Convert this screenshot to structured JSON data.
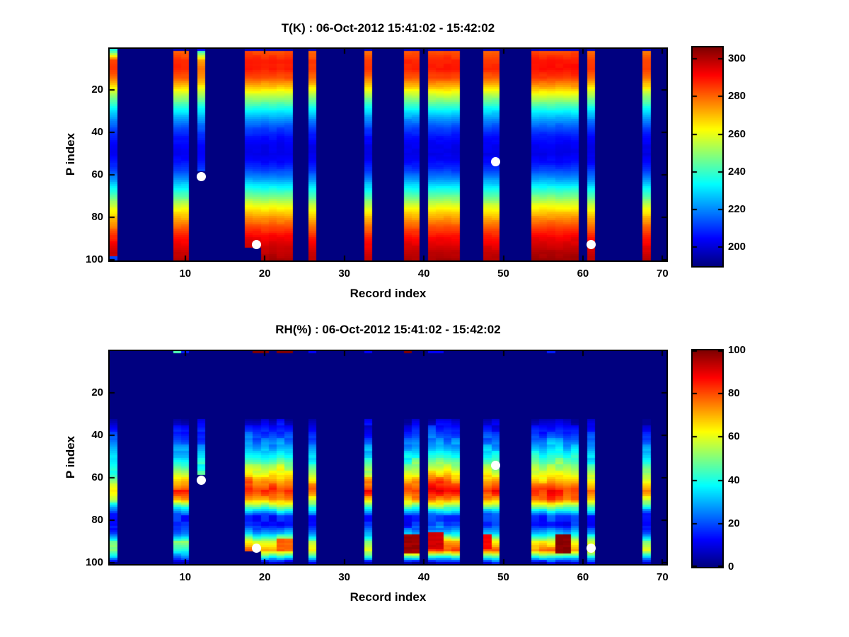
{
  "figure": {
    "background": "#ffffff",
    "plot_background": "#000080",
    "axis_color": "#000000",
    "marker_color": "#ffffff"
  },
  "plots": [
    {
      "title": "T(K) : 06-Oct-2012 15:41:02 - 15:42:02",
      "xlabel": "Record index",
      "ylabel": "P index",
      "x_ticks": [
        10,
        20,
        30,
        40,
        50,
        60,
        70
      ],
      "y_ticks": [
        20,
        40,
        60,
        80,
        100
      ],
      "colorbar": {
        "min": 190,
        "max": 306,
        "ticks": [
          200,
          220,
          240,
          260,
          280,
          300
        ]
      }
    },
    {
      "title": "RH(%) : 06-Oct-2012 15:41:02 - 15:42:02",
      "xlabel": "Record index",
      "ylabel": "P index",
      "x_ticks": [
        10,
        20,
        30,
        40,
        50,
        60,
        70
      ],
      "y_ticks": [
        20,
        40,
        60,
        80,
        100
      ],
      "colorbar": {
        "min": 0,
        "max": 100,
        "ticks": [
          0,
          20,
          40,
          60,
          80,
          100
        ]
      }
    }
  ],
  "chart_data": {
    "type": "heatmap",
    "colormap": "jet",
    "x_axis": "Record index, 1 to 70",
    "y_axis": "P index, 1 to 100, increasing downward",
    "missing_records": "2-8, 11, 13-17, 24-25, 27-32, 34-37, 40, 45-47, 50-53, 60, 62-67, 69-70",
    "p_breaks": [
      1,
      2,
      6,
      10,
      14,
      18,
      22,
      26,
      30,
      34,
      38,
      42,
      46,
      50,
      54,
      58,
      62,
      66,
      70,
      74,
      78,
      82,
      86,
      90,
      94,
      97,
      100
    ],
    "groups": [
      {
        "records": [
          1,
          1
        ],
        "pmax": 99,
        "T": [
          238,
          244,
          284,
          286,
          278,
          266,
          252,
          240,
          229,
          220,
          213,
          207,
          204,
          203,
          206,
          212,
          221,
          232,
          243,
          254,
          264,
          272,
          280,
          288,
          294,
          297,
          299
        ],
        "RH": [
          0,
          0,
          0,
          0,
          0,
          0,
          0,
          0,
          0,
          6,
          15,
          22,
          30,
          36,
          40,
          46,
          58,
          66,
          60,
          35,
          14,
          12,
          24,
          48,
          55,
          38,
          6
        ]
      },
      {
        "records": [
          9,
          10
        ],
        "pmax": 100,
        "T": [
          196,
          280,
          287,
          288,
          282,
          270,
          256,
          244,
          232,
          222,
          213,
          207,
          204,
          203,
          206,
          212,
          221,
          232,
          243,
          255,
          266,
          275,
          283,
          290,
          295,
          298,
          300
        ],
        "RH": [
          0,
          0,
          0,
          0,
          0,
          0,
          0,
          0,
          0,
          6,
          12,
          18,
          26,
          32,
          44,
          58,
          70,
          82,
          70,
          35,
          15,
          14,
          22,
          50,
          38,
          22,
          6
        ]
      },
      {
        "records": [
          12,
          12
        ],
        "pmax": 58,
        "T": [
          205,
          242,
          272,
          279,
          275,
          265,
          252,
          241,
          230,
          221,
          214,
          208,
          205,
          204,
          206,
          211,
          220,
          231,
          242,
          254,
          264,
          273,
          281,
          288,
          293,
          296,
          298
        ],
        "RH": [
          0,
          0,
          0,
          0,
          0,
          0,
          0,
          0,
          0,
          6,
          13,
          18,
          24,
          30,
          38,
          44,
          48,
          50,
          50,
          40,
          20,
          15,
          25,
          45,
          55,
          35,
          6
        ]
      },
      {
        "records": [
          18,
          19
        ],
        "pmax": 94,
        "T": [
          196,
          283,
          288,
          289,
          283,
          271,
          257,
          244,
          232,
          221,
          212,
          206,
          203,
          202,
          205,
          212,
          222,
          234,
          246,
          258,
          269,
          278,
          286,
          293,
          297,
          299,
          301
        ],
        "RH": [
          0,
          0,
          0,
          0,
          0,
          0,
          0,
          0,
          0,
          8,
          15,
          22,
          30,
          40,
          52,
          62,
          74,
          84,
          75,
          45,
          16,
          14,
          30,
          60,
          72,
          40,
          6
        ]
      },
      {
        "records": [
          20,
          23
        ],
        "pmax": 100,
        "T": [
          196,
          283,
          288,
          289,
          283,
          271,
          257,
          244,
          232,
          221,
          212,
          206,
          203,
          202,
          205,
          212,
          222,
          234,
          246,
          258,
          269,
          278,
          286,
          293,
          297,
          299,
          301
        ],
        "RH": [
          0,
          0,
          0,
          0,
          0,
          0,
          0,
          0,
          0,
          8,
          15,
          22,
          30,
          40,
          52,
          62,
          74,
          84,
          75,
          45,
          16,
          14,
          30,
          60,
          72,
          40,
          6
        ]
      },
      {
        "records": [
          26,
          26
        ],
        "pmax": 100,
        "T": [
          196,
          280,
          285,
          286,
          280,
          268,
          254,
          242,
          230,
          220,
          212,
          206,
          203,
          202,
          205,
          211,
          220,
          231,
          242,
          254,
          265,
          274,
          282,
          289,
          294,
          297,
          299
        ],
        "RH": [
          0,
          0,
          0,
          0,
          0,
          0,
          0,
          0,
          0,
          6,
          12,
          18,
          26,
          34,
          44,
          55,
          68,
          76,
          65,
          38,
          15,
          13,
          26,
          52,
          62,
          38,
          6
        ]
      },
      {
        "records": [
          33,
          33
        ],
        "pmax": 100,
        "T": [
          196,
          279,
          284,
          285,
          279,
          267,
          253,
          241,
          229,
          219,
          211,
          205,
          202,
          201,
          204,
          210,
          219,
          230,
          241,
          253,
          264,
          273,
          281,
          288,
          293,
          296,
          298
        ],
        "RH": [
          0,
          0,
          0,
          0,
          0,
          0,
          0,
          0,
          0,
          6,
          13,
          20,
          28,
          36,
          46,
          58,
          72,
          84,
          70,
          40,
          16,
          14,
          26,
          50,
          60,
          36,
          6
        ]
      },
      {
        "records": [
          38,
          39
        ],
        "pmax": 100,
        "T": [
          196,
          282,
          287,
          288,
          282,
          270,
          256,
          243,
          231,
          220,
          212,
          206,
          203,
          202,
          205,
          211,
          221,
          232,
          244,
          256,
          267,
          276,
          284,
          291,
          296,
          298,
          300
        ],
        "RH": [
          0,
          0,
          0,
          0,
          0,
          0,
          0,
          0,
          0,
          8,
          14,
          20,
          28,
          38,
          50,
          60,
          74,
          82,
          72,
          42,
          16,
          14,
          30,
          70,
          88,
          45,
          6
        ]
      },
      {
        "records": [
          41,
          44
        ],
        "pmax": 100,
        "T": [
          196,
          283,
          288,
          289,
          284,
          272,
          258,
          245,
          232,
          221,
          212,
          206,
          203,
          202,
          205,
          211,
          221,
          233,
          245,
          257,
          268,
          277,
          285,
          292,
          296,
          299,
          301
        ],
        "RH": [
          0,
          0,
          0,
          0,
          0,
          0,
          0,
          0,
          0,
          8,
          15,
          22,
          30,
          40,
          52,
          64,
          78,
          88,
          75,
          45,
          18,
          16,
          35,
          72,
          82,
          42,
          6
        ]
      },
      {
        "records": [
          48,
          49
        ],
        "pmax": 100,
        "T": [
          196,
          281,
          286,
          287,
          281,
          269,
          255,
          242,
          230,
          220,
          212,
          206,
          203,
          202,
          205,
          211,
          221,
          232,
          243,
          255,
          266,
          275,
          283,
          290,
          295,
          298,
          300
        ],
        "RH": [
          0,
          0,
          0,
          0,
          0,
          0,
          0,
          0,
          0,
          7,
          13,
          20,
          28,
          36,
          48,
          60,
          74,
          85,
          72,
          42,
          16,
          14,
          28,
          62,
          75,
          45,
          10
        ]
      },
      {
        "records": [
          54,
          59
        ],
        "pmax": 100,
        "T": [
          196,
          283,
          289,
          290,
          285,
          274,
          260,
          246,
          233,
          222,
          213,
          206,
          203,
          202,
          205,
          212,
          222,
          234,
          246,
          258,
          269,
          278,
          286,
          293,
          297,
          300,
          302
        ],
        "RH": [
          0,
          0,
          0,
          0,
          0,
          0,
          0,
          0,
          0,
          7,
          14,
          22,
          32,
          42,
          50,
          58,
          70,
          82,
          78,
          48,
          18,
          15,
          32,
          62,
          75,
          42,
          6
        ]
      },
      {
        "records": [
          61,
          61
        ],
        "pmax": 100,
        "T": [
          196,
          280,
          285,
          286,
          280,
          268,
          254,
          242,
          230,
          220,
          212,
          206,
          203,
          202,
          205,
          211,
          220,
          231,
          243,
          255,
          266,
          275,
          283,
          290,
          295,
          298,
          300
        ],
        "RH": [
          0,
          0,
          0,
          0,
          0,
          0,
          0,
          0,
          0,
          6,
          12,
          18,
          26,
          34,
          44,
          54,
          68,
          78,
          68,
          40,
          15,
          13,
          26,
          55,
          68,
          38,
          6
        ]
      },
      {
        "records": [
          68,
          68
        ],
        "pmax": 100,
        "T": [
          196,
          278,
          284,
          285,
          279,
          267,
          253,
          241,
          229,
          219,
          211,
          205,
          202,
          201,
          204,
          210,
          220,
          231,
          242,
          254,
          265,
          274,
          282,
          289,
          294,
          297,
          299
        ],
        "RH": [
          0,
          0,
          0,
          0,
          0,
          0,
          0,
          0,
          0,
          6,
          12,
          18,
          26,
          34,
          44,
          56,
          66,
          76,
          66,
          38,
          14,
          12,
          24,
          52,
          62,
          36,
          6
        ]
      }
    ],
    "rh_top_row": {
      "9": 45,
      "10": 15,
      "19": 100,
      "20": 100,
      "22": 100,
      "23": 100,
      "26": 12,
      "33": 12,
      "38": 100,
      "41": 12,
      "42": 12,
      "56": 15
    },
    "rh_spots": [
      {
        "records": [
          38,
          39
        ],
        "p": [
          87,
          95
        ],
        "v": 97
      },
      {
        "records": [
          41,
          42
        ],
        "p": [
          86,
          93
        ],
        "v": 92
      },
      {
        "records": [
          48,
          48
        ],
        "p": [
          87,
          93
        ],
        "v": 88
      },
      {
        "records": [
          57,
          58
        ],
        "p": [
          87,
          95
        ],
        "v": 99
      },
      {
        "records": [
          22,
          23
        ],
        "p": [
          89,
          94
        ],
        "v": 78
      }
    ],
    "t_spots": [
      {
        "records": [
          1,
          1
        ],
        "p": [
          99,
          100
        ],
        "v": 212
      }
    ],
    "markers": [
      {
        "record": 12,
        "p": 61
      },
      {
        "record": 19,
        "p": 93
      },
      {
        "record": 49,
        "p": 54
      },
      {
        "record": 61,
        "p": 93
      }
    ]
  }
}
